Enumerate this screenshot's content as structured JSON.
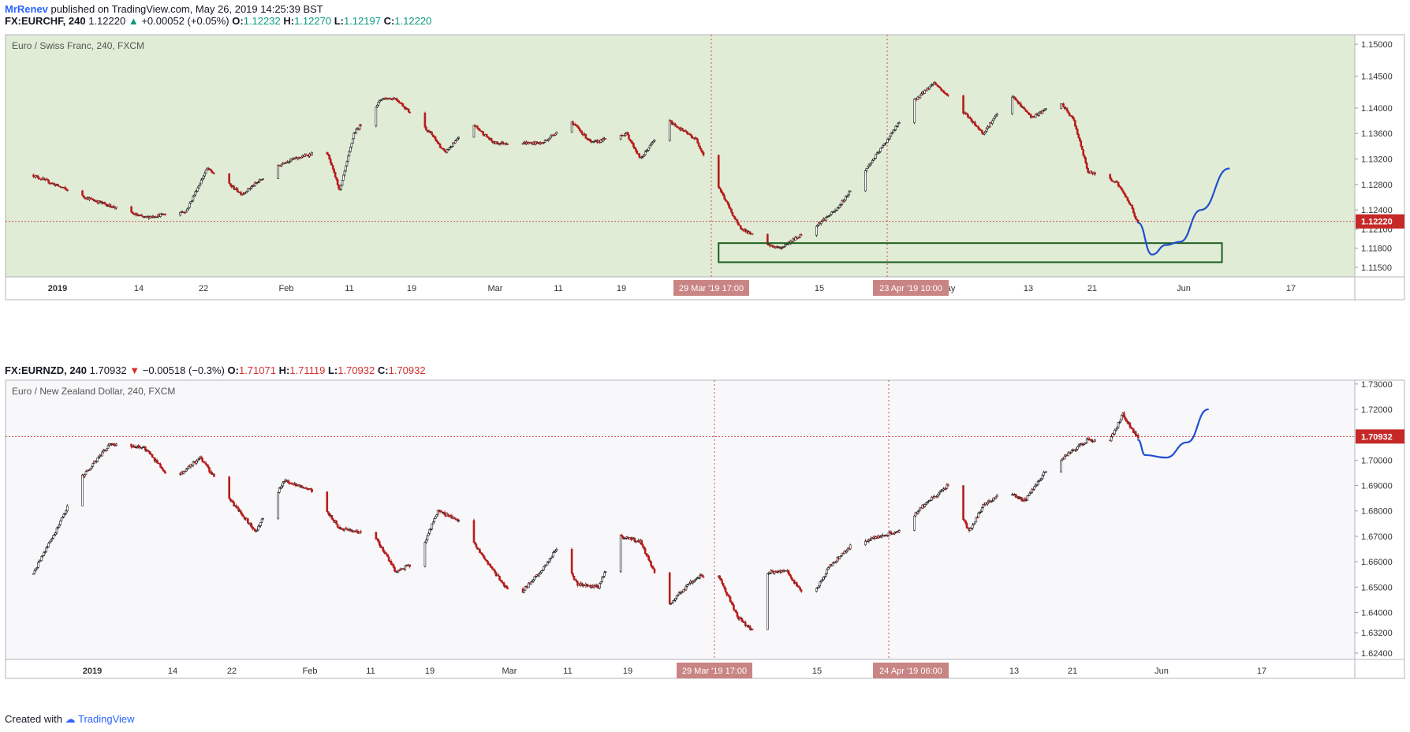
{
  "header": {
    "user": "MrRenev",
    "published_text": "published on TradingView.com, May 26, 2019 14:25:39 BST"
  },
  "panel1": {
    "symbol": "FX:EURCHF, 240",
    "price": "1.12220",
    "change": "+0.00052 (+0.05%)",
    "direction": "up",
    "ohlc": {
      "o": "1.12232",
      "h": "1.12270",
      "l": "1.12197",
      "c": "1.12220"
    }
  },
  "panel2": {
    "symbol": "FX:EURNZD, 240",
    "price": "1.70932",
    "change": "−0.00518 (−0.3%)",
    "direction": "down",
    "ohlc": {
      "o": "1.71071",
      "h": "1.71119",
      "l": "1.70932",
      "c": "1.70932"
    }
  },
  "footer": {
    "created_with": "Created with",
    "brand": "TradingView"
  },
  "chart_data": [
    {
      "type": "candlestick",
      "title": "Euro / Swiss Franc, 240, FXCM",
      "background": "#e0ecd6",
      "ylim": [
        1.1135,
        1.1515
      ],
      "y_ticks": [
        "1.15000",
        "1.14500",
        "1.14000",
        "1.13600",
        "1.13200",
        "1.12800",
        "1.12400",
        "1.12100",
        "1.11800",
        "1.11500"
      ],
      "x_ticks": [
        "2019",
        "14",
        "22",
        "Feb",
        "11",
        "19",
        "Mar",
        "11",
        "19",
        "29 Mar '19  17:00",
        "15",
        "23 Apr '19  10:00",
        "May",
        "13",
        "21",
        "Jun",
        "17"
      ],
      "last_price": "1.12220",
      "last_price_value": 1.1222,
      "crosshair_labels": [
        "29 Mar '19  17:00",
        "23 Apr '19  10:00"
      ],
      "trend_path": [
        {
          "date": "2018-12-17",
          "close": 1.1295
        },
        {
          "date": "2018-12-24",
          "close": 1.1262
        },
        {
          "date": "2019-01-02",
          "close": 1.1228
        },
        {
          "date": "2019-01-08",
          "close": 1.1238
        },
        {
          "date": "2019-01-11",
          "close": 1.1305
        },
        {
          "date": "2019-01-16",
          "close": 1.1265
        },
        {
          "date": "2019-01-22",
          "close": 1.1315
        },
        {
          "date": "2019-01-28",
          "close": 1.1335
        },
        {
          "date": "2019-01-30",
          "close": 1.127
        },
        {
          "date": "2019-02-01",
          "close": 1.136
        },
        {
          "date": "2019-02-05",
          "close": 1.1415
        },
        {
          "date": "2019-02-07",
          "close": 1.1415
        },
        {
          "date": "2019-02-12",
          "close": 1.136
        },
        {
          "date": "2019-02-14",
          "close": 1.133
        },
        {
          "date": "2019-02-18",
          "close": 1.1375
        },
        {
          "date": "2019-02-21",
          "close": 1.1345
        },
        {
          "date": "2019-02-28",
          "close": 1.1345
        },
        {
          "date": "2019-03-04",
          "close": 1.138
        },
        {
          "date": "2019-03-07",
          "close": 1.1345
        },
        {
          "date": "2019-03-12",
          "close": 1.136
        },
        {
          "date": "2019-03-14",
          "close": 1.132
        },
        {
          "date": "2019-03-18",
          "close": 1.138
        },
        {
          "date": "2019-03-22",
          "close": 1.135
        },
        {
          "date": "2019-03-25",
          "close": 1.128
        },
        {
          "date": "2019-03-28",
          "close": 1.1215
        },
        {
          "date": "2019-04-01",
          "close": 1.1185
        },
        {
          "date": "2019-04-03",
          "close": 1.118
        },
        {
          "date": "2019-04-08",
          "close": 1.1215
        },
        {
          "date": "2019-04-11",
          "close": 1.124
        },
        {
          "date": "2019-04-15",
          "close": 1.13
        },
        {
          "date": "2019-04-18",
          "close": 1.1345
        },
        {
          "date": "2019-04-22",
          "close": 1.141
        },
        {
          "date": "2019-04-25",
          "close": 1.144
        },
        {
          "date": "2019-04-30",
          "close": 1.1385
        },
        {
          "date": "2019-05-02",
          "close": 1.136
        },
        {
          "date": "2019-05-06",
          "close": 1.142
        },
        {
          "date": "2019-05-09",
          "close": 1.1385
        },
        {
          "date": "2019-05-13",
          "close": 1.141
        },
        {
          "date": "2019-05-15",
          "close": 1.138
        },
        {
          "date": "2019-05-17",
          "close": 1.13
        },
        {
          "date": "2019-05-21",
          "close": 1.1285
        },
        {
          "date": "2019-05-23",
          "close": 1.125
        },
        {
          "date": "2019-05-24",
          "close": 1.1222
        }
      ],
      "drawings": [
        {
          "kind": "rectangle",
          "color": "#1b5e20",
          "from_date": "2019-03-25",
          "to_date": "2019-06-05",
          "y_top": 1.1188,
          "y_bottom": 1.1158
        },
        {
          "kind": "projection",
          "color": "#1f4fcf",
          "points": [
            {
              "date": "2019-05-24",
              "value": 1.122
            },
            {
              "date": "2019-05-26",
              "value": 1.117
            },
            {
              "date": "2019-05-28",
              "value": 1.1185
            },
            {
              "date": "2019-05-30",
              "value": 1.119
            },
            {
              "date": "2019-06-02",
              "value": 1.124
            },
            {
              "date": "2019-06-06",
              "value": 1.1305
            }
          ]
        }
      ]
    },
    {
      "type": "candlestick",
      "title": "Euro / New Zealand Dollar, 240, FXCM",
      "background": "#f8f8fa",
      "ylim": [
        1.6215,
        1.7315
      ],
      "y_ticks": [
        "1.73000",
        "1.72000",
        "1.70000",
        "1.69000",
        "1.68000",
        "1.67000",
        "1.66000",
        "1.65000",
        "1.64000",
        "1.63200",
        "1.62400"
      ],
      "x_ticks": [
        "2019",
        "14",
        "22",
        "Feb",
        "11",
        "19",
        "Mar",
        "11",
        "19",
        "29 Mar '19  17:00",
        "15",
        "24 Apr '19  06:00",
        "May",
        "13",
        "21",
        "Jun",
        "17"
      ],
      "last_price": "1.70932",
      "last_price_value": 1.70932,
      "crosshair_labels": [
        "29 Mar '19  17:00",
        "24 Apr '19  06:00"
      ],
      "trend_path": [
        {
          "date": "2018-12-17",
          "close": 1.655
        },
        {
          "date": "2018-12-20",
          "close": 1.67
        },
        {
          "date": "2018-12-24",
          "close": 1.693
        },
        {
          "date": "2018-12-28",
          "close": 1.706
        },
        {
          "date": "2019-01-02",
          "close": 1.705
        },
        {
          "date": "2019-01-06",
          "close": 1.692
        },
        {
          "date": "2019-01-10",
          "close": 1.701
        },
        {
          "date": "2019-01-15",
          "close": 1.682
        },
        {
          "date": "2019-01-18",
          "close": 1.672
        },
        {
          "date": "2019-01-22",
          "close": 1.692
        },
        {
          "date": "2019-01-26",
          "close": 1.688
        },
        {
          "date": "2019-01-30",
          "close": 1.673
        },
        {
          "date": "2019-02-04",
          "close": 1.67
        },
        {
          "date": "2019-02-07",
          "close": 1.656
        },
        {
          "date": "2019-02-10",
          "close": 1.66
        },
        {
          "date": "2019-02-13",
          "close": 1.68
        },
        {
          "date": "2019-02-16",
          "close": 1.676
        },
        {
          "date": "2019-02-20",
          "close": 1.66
        },
        {
          "date": "2019-02-24",
          "close": 1.645
        },
        {
          "date": "2019-02-28",
          "close": 1.657
        },
        {
          "date": "2019-03-02",
          "close": 1.665
        },
        {
          "date": "2019-03-05",
          "close": 1.651
        },
        {
          "date": "2019-03-08",
          "close": 1.65
        },
        {
          "date": "2019-03-11",
          "close": 1.67
        },
        {
          "date": "2019-03-14",
          "close": 1.668
        },
        {
          "date": "2019-03-18",
          "close": 1.643
        },
        {
          "date": "2019-03-22",
          "close": 1.654
        },
        {
          "date": "2019-03-25",
          "close": 1.655
        },
        {
          "date": "2019-03-28",
          "close": 1.638
        },
        {
          "date": "2019-03-31",
          "close": 1.63
        },
        {
          "date": "2019-04-01",
          "close": 1.656
        },
        {
          "date": "2019-04-04",
          "close": 1.656
        },
        {
          "date": "2019-04-07",
          "close": 1.644
        },
        {
          "date": "2019-04-10",
          "close": 1.658
        },
        {
          "date": "2019-04-13",
          "close": 1.666
        },
        {
          "date": "2019-04-17",
          "close": 1.67
        },
        {
          "date": "2019-04-20",
          "close": 1.672
        },
        {
          "date": "2019-04-23",
          "close": 1.681
        },
        {
          "date": "2019-04-27",
          "close": 1.69
        },
        {
          "date": "2019-04-30",
          "close": 1.672
        },
        {
          "date": "2019-05-02",
          "close": 1.682
        },
        {
          "date": "2019-05-05",
          "close": 1.688
        },
        {
          "date": "2019-05-08",
          "close": 1.684
        },
        {
          "date": "2019-05-11",
          "close": 1.696
        },
        {
          "date": "2019-05-14",
          "close": 1.702
        },
        {
          "date": "2019-05-17",
          "close": 1.708
        },
        {
          "date": "2019-05-20",
          "close": 1.707
        },
        {
          "date": "2019-05-22",
          "close": 1.718
        },
        {
          "date": "2019-05-24",
          "close": 1.7093
        }
      ],
      "drawings": [
        {
          "kind": "projection",
          "color": "#1f4fcf",
          "points": [
            {
              "date": "2019-05-24",
              "value": 1.708
            },
            {
              "date": "2019-05-25",
              "value": 1.702
            },
            {
              "date": "2019-05-28",
              "value": 1.701
            },
            {
              "date": "2019-05-31",
              "value": 1.707
            },
            {
              "date": "2019-06-03",
              "value": 1.72
            }
          ]
        }
      ]
    }
  ]
}
